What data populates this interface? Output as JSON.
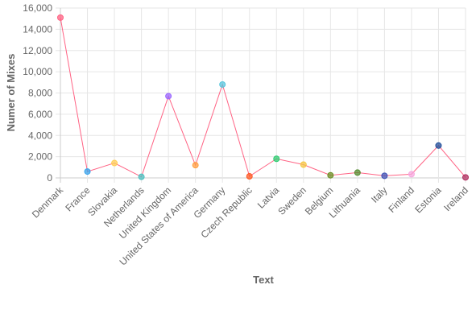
{
  "chart_data": {
    "type": "line",
    "title": "",
    "xlabel": "Text",
    "ylabel": "Numer of Mixes",
    "ylim": [
      0,
      16000
    ],
    "ytick_values": [
      0,
      2000,
      4000,
      6000,
      8000,
      10000,
      12000,
      14000,
      16000
    ],
    "ytick_labels": [
      "0",
      "2,000",
      "4,000",
      "6,000",
      "8,000",
      "10,000",
      "12,000",
      "14,000",
      "16,000"
    ],
    "grid": true,
    "legend": "none",
    "line_color": "#ff6384",
    "categories": [
      "Denmark",
      "France",
      "Slovakia",
      "Netherlands",
      "United Kingdom",
      "United States of America",
      "Germany",
      "Czech Republic",
      "Latvia",
      "Sweden",
      "Belgium",
      "Lithuania",
      "Italy",
      "Finland",
      "Estonia",
      "Ireland"
    ],
    "values": [
      15100,
      600,
      1400,
      100,
      7700,
      1200,
      8800,
      150,
      1800,
      1250,
      250,
      500,
      200,
      350,
      3050,
      50
    ],
    "point_colors": [
      "#ff6384",
      "#36a2eb",
      "#ffce56",
      "#4bc0c0",
      "#9966ff",
      "#ff9f40",
      "#57c6dd",
      "#ff5722",
      "#2ecc71",
      "#f6c744",
      "#6b8e23",
      "#558b2f",
      "#3f51b5",
      "#f7a8e0",
      "#1f4e9a",
      "#b03060"
    ]
  }
}
